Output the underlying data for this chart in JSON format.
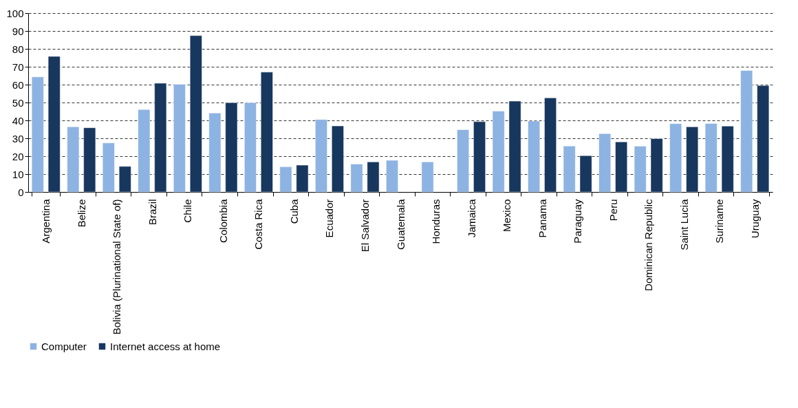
{
  "chart_data": {
    "type": "bar",
    "categories": [
      "Argentina",
      "Belize",
      "Bolivia (Plurinational State of)",
      "Brazil",
      "Chile",
      "Colombia",
      "Costa Rica",
      "Cuba",
      "Ecuador",
      "El Salvador",
      "Guatemala",
      "Honduras",
      "Jamaica",
      "Mexico",
      "Panama",
      "Paraguay",
      "Peru",
      "Dominican Republic",
      "Saint Lucia",
      "Suriname",
      "Uruguay"
    ],
    "series": [
      {
        "name": "Computer",
        "color": "#8db3e2",
        "values": [
          64.3,
          36.4,
          27.4,
          46.1,
          60.2,
          44.1,
          49.9,
          14.1,
          40.5,
          15.6,
          17.7,
          16.8,
          34.8,
          45.2,
          39.6,
          25.7,
          32.6,
          25.6,
          38.2,
          38.3,
          67.9
        ]
      },
      {
        "name": "Internet access at home",
        "color": "#17375e",
        "values": [
          75.8,
          35.9,
          14.3,
          60.8,
          87.4,
          49.9,
          67.0,
          15.0,
          36.9,
          16.8,
          null,
          null,
          39.3,
          50.8,
          52.6,
          20.3,
          28.0,
          29.8,
          36.4,
          36.8,
          59.5
        ]
      }
    ],
    "ylim": [
      0,
      100
    ],
    "yticks": [
      0,
      10,
      20,
      30,
      40,
      50,
      60,
      70,
      80,
      90,
      100
    ],
    "grid": "y",
    "legend": "bottom"
  }
}
